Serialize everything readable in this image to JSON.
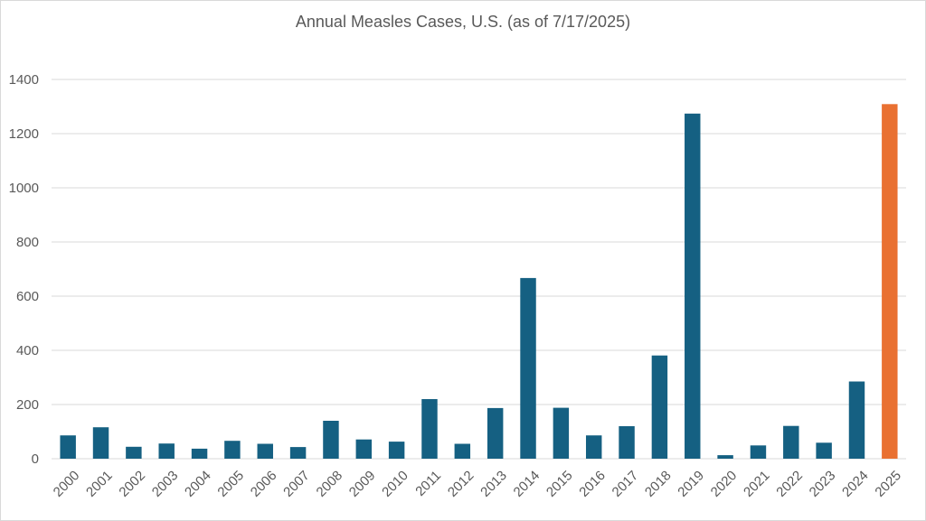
{
  "chart_data": {
    "type": "bar",
    "title": "Annual Measles Cases, U.S. (as of 7/17/2025)",
    "xlabel": "",
    "ylabel": "",
    "ylim": [
      0,
      1400
    ],
    "yticks": [
      0,
      200,
      400,
      600,
      800,
      1000,
      1200,
      1400
    ],
    "grid": true,
    "categories": [
      "2000",
      "2001",
      "2002",
      "2003",
      "2004",
      "2005",
      "2006",
      "2007",
      "2008",
      "2009",
      "2010",
      "2011",
      "2012",
      "2013",
      "2014",
      "2015",
      "2016",
      "2017",
      "2018",
      "2019",
      "2020",
      "2021",
      "2022",
      "2023",
      "2024",
      "2025"
    ],
    "values": [
      86,
      116,
      44,
      56,
      37,
      66,
      55,
      43,
      140,
      71,
      63,
      220,
      55,
      187,
      667,
      188,
      86,
      120,
      381,
      1274,
      13,
      49,
      121,
      59,
      285,
      1309
    ],
    "colors": {
      "default": "#156082",
      "highlight": "#e97132",
      "highlight_category": "2025",
      "grid": "#d9d9d9",
      "text": "#595959"
    }
  }
}
